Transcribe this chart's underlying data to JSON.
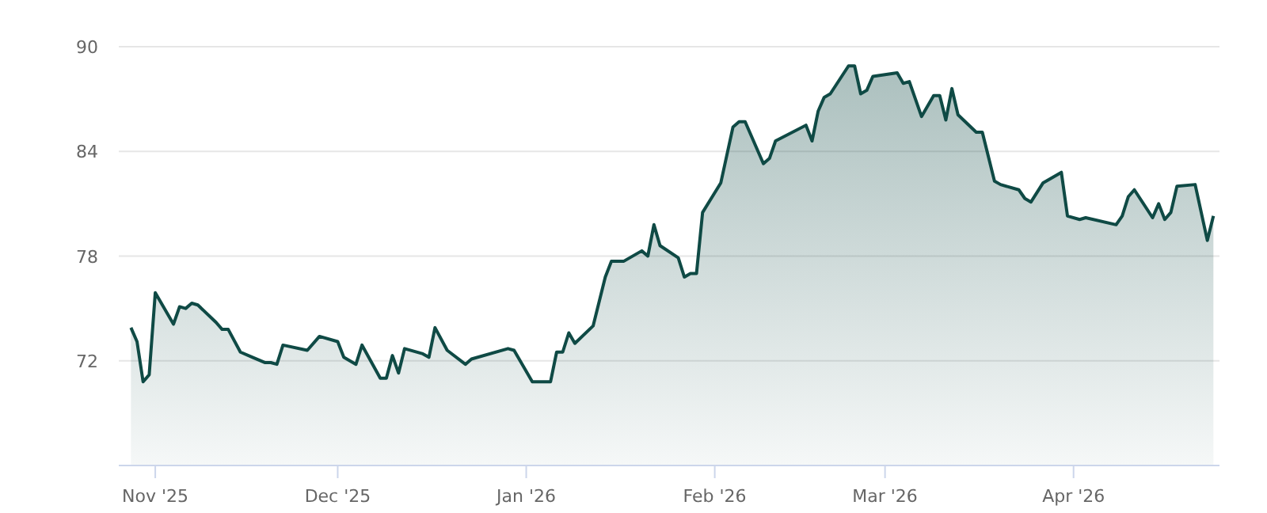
{
  "chart_data": {
    "type": "area",
    "x": [
      "2025-10-28",
      "2025-10-29",
      "2025-10-30",
      "2025-10-31",
      "2025-11-01",
      "2025-11-04",
      "2025-11-05",
      "2025-11-06",
      "2025-11-07",
      "2025-11-08",
      "2025-11-11",
      "2025-11-12",
      "2025-11-13",
      "2025-11-15",
      "2025-11-17",
      "2025-11-19",
      "2025-11-20",
      "2025-11-21",
      "2025-11-22",
      "2025-11-26",
      "2025-11-28",
      "2025-12-01",
      "2025-12-02",
      "2025-12-04",
      "2025-12-05",
      "2025-12-08",
      "2025-12-09",
      "2025-12-10",
      "2025-12-11",
      "2025-12-12",
      "2025-12-15",
      "2025-12-16",
      "2025-12-17",
      "2025-12-19",
      "2025-12-22",
      "2025-12-23",
      "2025-12-29",
      "2025-12-30",
      "2026-01-02",
      "2026-01-05",
      "2026-01-06",
      "2026-01-07",
      "2026-01-08",
      "2026-01-09",
      "2026-01-12",
      "2026-01-14",
      "2026-01-15",
      "2026-01-17",
      "2026-01-20",
      "2026-01-21",
      "2026-01-22",
      "2026-01-23",
      "2026-01-26",
      "2026-01-27",
      "2026-01-28",
      "2026-01-29",
      "2026-01-30",
      "2026-02-02",
      "2026-02-04",
      "2026-02-05",
      "2026-02-06",
      "2026-02-09",
      "2026-02-10",
      "2026-02-11",
      "2026-02-16",
      "2026-02-17",
      "2026-02-18",
      "2026-02-19",
      "2026-02-20",
      "2026-02-23",
      "2026-02-24",
      "2026-02-25",
      "2026-02-26",
      "2026-02-27",
      "2026-03-03",
      "2026-03-04",
      "2026-03-05",
      "2026-03-07",
      "2026-03-09",
      "2026-03-10",
      "2026-03-11",
      "2026-03-12",
      "2026-03-13",
      "2026-03-16",
      "2026-03-17",
      "2026-03-19",
      "2026-03-20",
      "2026-03-23",
      "2026-03-24",
      "2026-03-25",
      "2026-03-27",
      "2026-03-30",
      "2026-03-31",
      "2026-04-02",
      "2026-04-03",
      "2026-04-08",
      "2026-04-09",
      "2026-04-10",
      "2026-04-11",
      "2026-04-14",
      "2026-04-15",
      "2026-04-16",
      "2026-04-17",
      "2026-04-18",
      "2026-04-21",
      "2026-04-23",
      "2026-04-24"
    ],
    "series": [
      {
        "color": "#0f4a45",
        "values": [
          73.9,
          73.1,
          70.8,
          71.2,
          75.9,
          74.1,
          75.1,
          75.0,
          75.3,
          75.2,
          74.2,
          73.8,
          73.8,
          72.5,
          72.2,
          71.9,
          71.9,
          71.8,
          72.9,
          72.6,
          73.4,
          73.1,
          72.2,
          71.8,
          72.9,
          71.0,
          71.0,
          72.3,
          71.3,
          72.7,
          72.4,
          72.2,
          73.9,
          72.6,
          71.8,
          72.1,
          72.7,
          72.6,
          70.8,
          70.8,
          72.5,
          72.5,
          73.6,
          73.0,
          74.0,
          76.8,
          77.7,
          77.7,
          78.3,
          78.0,
          79.8,
          78.6,
          77.9,
          76.8,
          77.0,
          77.0,
          80.5,
          82.2,
          85.4,
          85.7,
          85.7,
          83.3,
          83.6,
          84.6,
          85.5,
          84.6,
          86.3,
          87.1,
          87.3,
          88.9,
          88.9,
          87.3,
          87.5,
          88.3,
          88.5,
          87.9,
          88.0,
          86.0,
          87.2,
          87.2,
          85.8,
          87.6,
          86.1,
          85.1,
          85.1,
          82.3,
          82.1,
          81.8,
          81.3,
          81.1,
          82.2,
          82.8,
          80.3,
          80.1,
          80.2,
          79.8,
          80.3,
          81.4,
          81.8,
          80.2,
          81.0,
          80.1,
          80.5,
          82.0,
          82.1,
          78.9,
          80.3
        ]
      }
    ],
    "xlim": [
      "2025-10-26",
      "2026-04-25"
    ],
    "xticks": [
      {
        "value": "2025-11-01",
        "label": "Nov '25"
      },
      {
        "value": "2025-12-01",
        "label": "Dec '25"
      },
      {
        "value": "2026-01-01",
        "label": "Jan '26"
      },
      {
        "value": "2026-02-01",
        "label": "Feb '26"
      },
      {
        "value": "2026-03-01",
        "label": "Mar '26"
      },
      {
        "value": "2026-04-01",
        "label": "Apr '26"
      }
    ],
    "ylim": [
      66,
      90
    ],
    "yticks": [
      72,
      78,
      84,
      90
    ],
    "grid": "y",
    "marker": "none",
    "line_style": "solid"
  }
}
